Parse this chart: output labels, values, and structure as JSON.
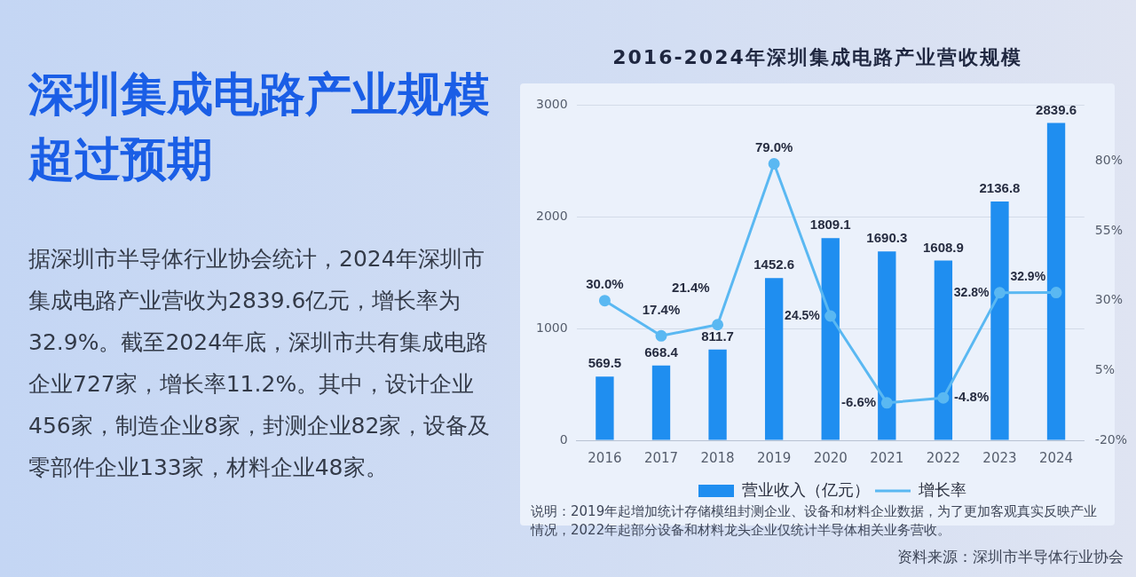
{
  "chart_data": [
    {
      "type": "other",
      "title": "深圳集成电路产业规模超过预期",
      "annotations": [
        "据深圳市半导体行业协会统计，2024年深圳市集成电路产业营收为2839.6亿元，增长率为32.9%。截至2024年底，深圳市共有集成电路企业727家，增长率11.2%。其中，设计企业456家，制造企业8家，封测企业82家，设备及零部件企业133家，材料企业48家。"
      ]
    },
    {
      "type": "bar",
      "title": "2016-2024年深圳集成电路产业营收规模",
      "categories": [
        "2016",
        "2017",
        "2018",
        "2019",
        "2020",
        "2021",
        "2022",
        "2023",
        "2024"
      ],
      "series": [
        {
          "name": "营业收入（亿元）",
          "type": "bar",
          "color": "#1f8ef0",
          "values": [
            569.5,
            668.4,
            811.7,
            1452.6,
            1809.1,
            1690.3,
            1608.9,
            2136.8,
            2839.6
          ],
          "value_labels": [
            "569.5",
            "668.4",
            "811.7",
            "1452.6",
            "1809.1",
            "1690.3",
            "1608.9",
            "2136.8",
            "2839.6"
          ]
        },
        {
          "name": "增长率",
          "type": "line",
          "axis": "y2",
          "color": "#5ab8f2",
          "marker": "circle",
          "values": [
            30.0,
            17.4,
            21.4,
            79.0,
            24.5,
            -6.6,
            -4.8,
            32.8,
            32.9
          ],
          "value_labels": [
            "30.0%",
            "17.4%",
            "21.4%",
            "79.0%",
            "24.5%",
            "-6.6%",
            "-4.8%",
            "32.8%",
            "32.9%"
          ]
        }
      ],
      "ylim": [
        0,
        3000
      ],
      "yticks": [
        0,
        1000,
        2000,
        3000
      ],
      "y2lim": [
        -20,
        100
      ],
      "y2ticks": [
        {
          "value": -20,
          "label": "-20%"
        },
        {
          "value": 5,
          "label": "5%"
        },
        {
          "value": 30,
          "label": "30%"
        },
        {
          "value": 55,
          "label": "55%"
        },
        {
          "value": 80,
          "label": "80%"
        }
      ],
      "grid": "y",
      "legend": "bottom",
      "annotations": [
        "说明：2019年起增加统计存储模组封测企业、设备和材料企业数据，为了更加客观真实反映产业情况，2022年起部分设备和材料龙头企业仅统计半导体相关业务营收。",
        "资料来源：深圳市半导体行业协会"
      ]
    }
  ]
}
